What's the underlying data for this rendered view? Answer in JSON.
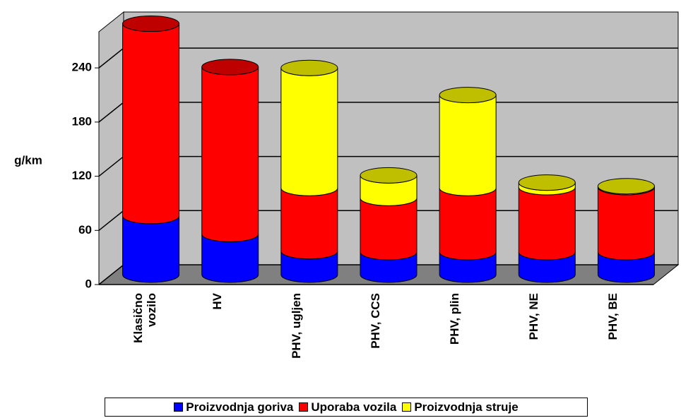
{
  "chart_data": {
    "type": "bar",
    "stacked": true,
    "style": "3d-cylinder",
    "y_label": "g/km",
    "categories": [
      "Klasično vozilo",
      "HV",
      "PHV, ugljen",
      "PHV, CCS",
      "PHV, plin",
      "PHV, NE",
      "PHV, BE"
    ],
    "series": [
      {
        "name": "Proizvodnja goriva",
        "color": "#0000ff",
        "values": [
          65,
          45,
          26,
          25,
          25,
          25,
          25
        ]
      },
      {
        "name": "Uporaba vozila",
        "color": "#ff0000",
        "values": [
          213,
          185,
          70,
          60,
          71,
          72,
          72
        ]
      },
      {
        "name": "Proizvodnja struje",
        "color": "#ffff00",
        "values": [
          0,
          0,
          133,
          25,
          103,
          5,
          1
        ]
      }
    ],
    "ylim": [
      0,
      280
    ],
    "yticks": [
      0,
      60,
      120,
      180,
      240
    ],
    "grid": true,
    "legend": "bottom"
  }
}
